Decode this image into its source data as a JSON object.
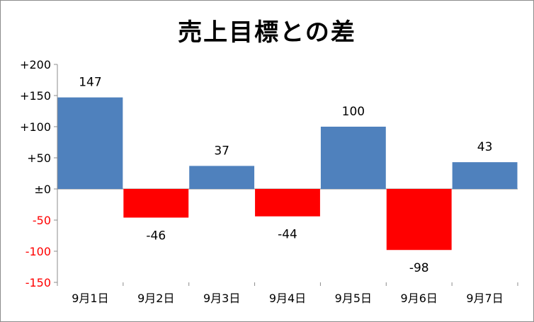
{
  "chart_data": {
    "type": "bar",
    "title": "売上目標との差",
    "xlabel": "",
    "ylabel": "",
    "categories": [
      "9月1日",
      "9月2日",
      "9月3日",
      "9月4日",
      "9月5日",
      "9月6日",
      "9月7日"
    ],
    "values": [
      147,
      -46,
      37,
      -44,
      100,
      -98,
      43
    ],
    "ylim": [
      -150,
      200
    ],
    "yticks": [
      200,
      150,
      100,
      50,
      0,
      -50,
      -100,
      -150
    ],
    "ytick_labels": [
      "+200",
      "+150",
      "+100",
      "+50",
      "±0",
      "-50",
      "-100",
      "-150"
    ],
    "data_labels": [
      "147",
      "-46",
      "37",
      "-44",
      "100",
      "-98",
      "43"
    ],
    "grid": false,
    "legend": "none",
    "colors": {
      "positive": "#4f81bd",
      "negative": "#ff0000",
      "positive_tick": "#000000",
      "negative_tick": "#ff0000"
    }
  }
}
